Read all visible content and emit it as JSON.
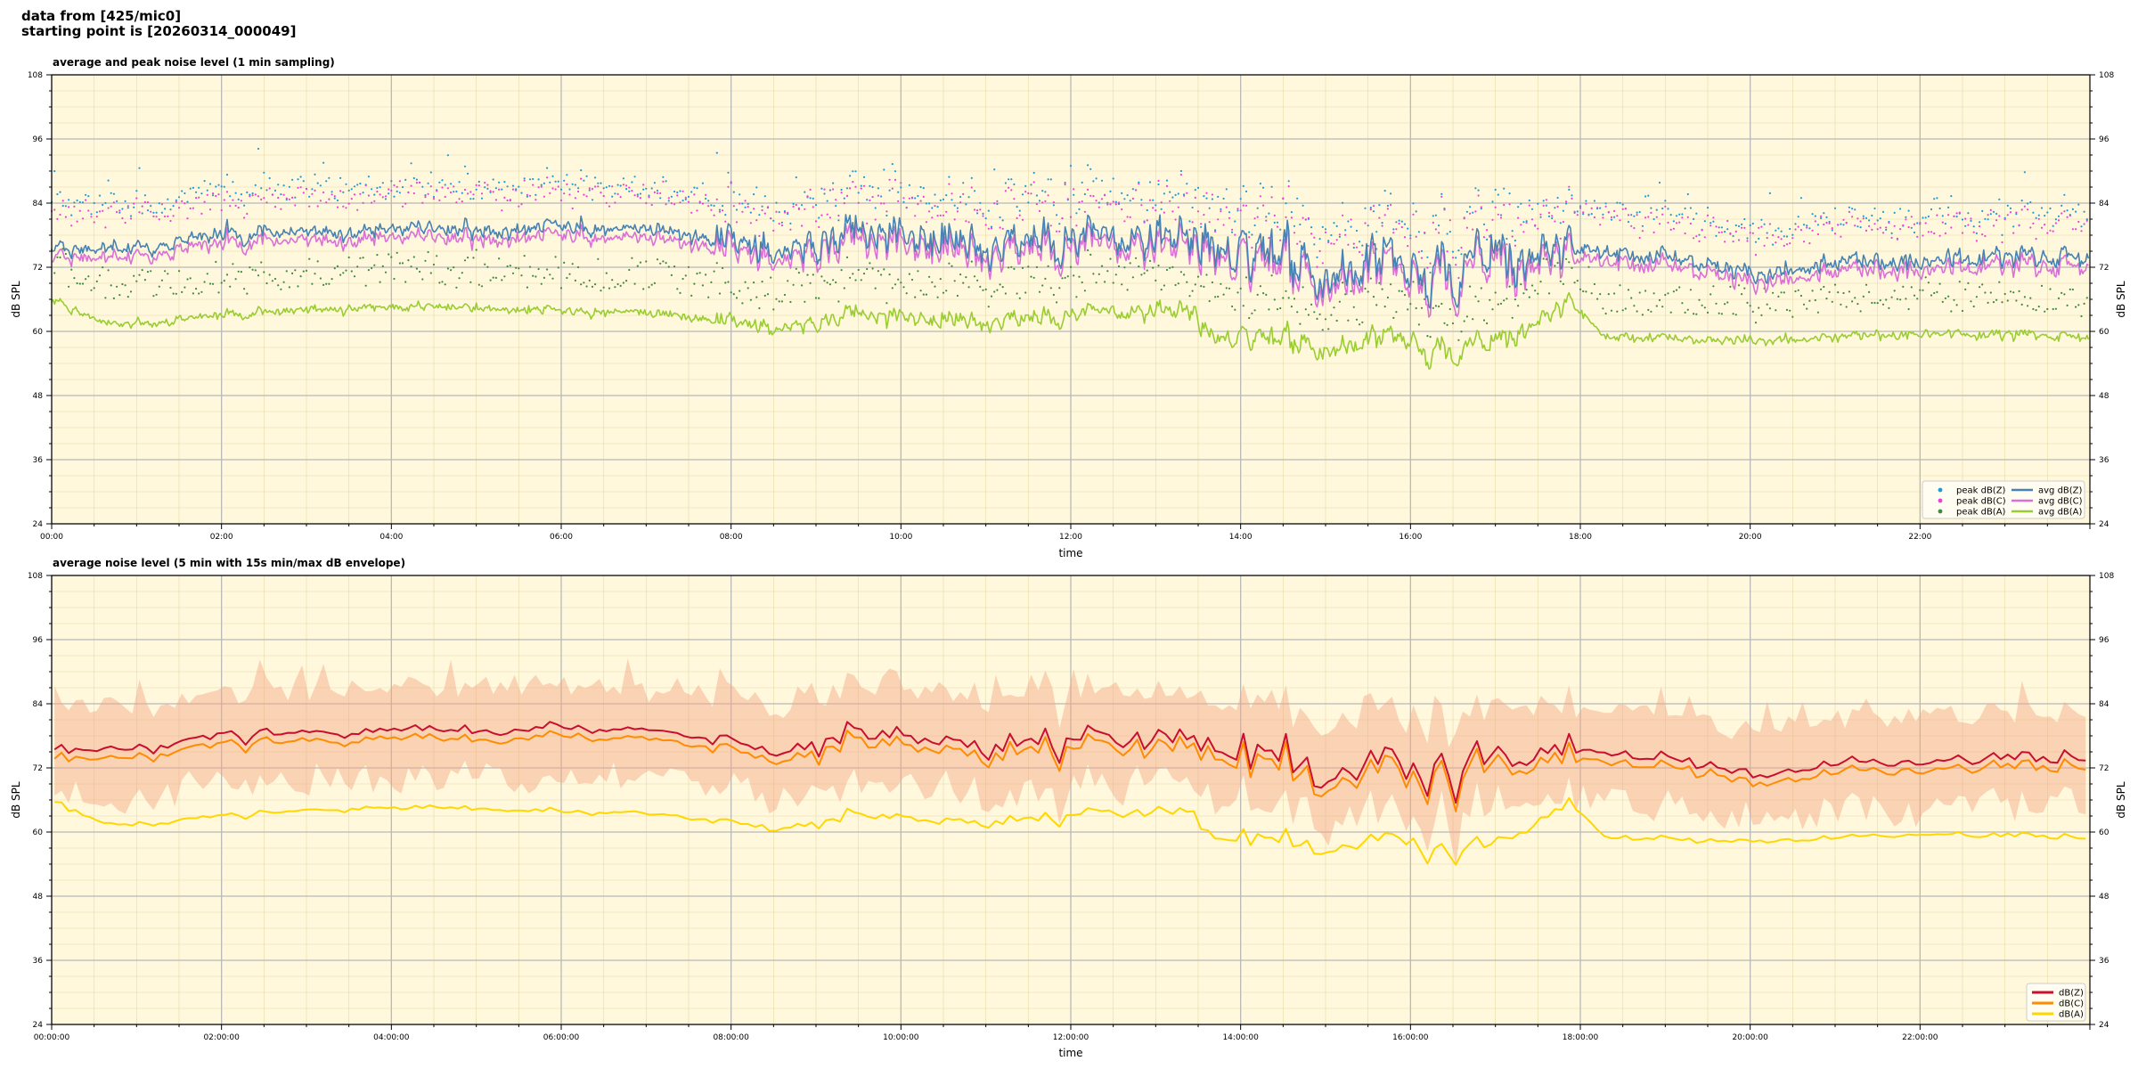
{
  "header": {
    "line1": "data from [425/mic0]",
    "line2": "starting point is [20260314_000049]"
  },
  "chart_data": [
    {
      "type": "scatter+line",
      "title": "average and peak noise level (1 min sampling)",
      "xlabel": "time",
      "ylabel": "dB SPL",
      "ylim": [
        24,
        108
      ],
      "xlim_hours": [
        0,
        24
      ],
      "y_ticks": [
        "24",
        "36",
        "48",
        "60",
        "72",
        "84",
        "96",
        "108"
      ],
      "x_ticks": [
        "00:00",
        "02:00",
        "04:00",
        "06:00",
        "08:00",
        "10:00",
        "12:00",
        "14:00",
        "16:00",
        "18:00",
        "20:00",
        "22:00"
      ],
      "grid": true,
      "legend_placement": "lower-right",
      "legend": [
        {
          "name": "peak dB(Z)",
          "kind": "dot",
          "color": "#1f9bd6"
        },
        {
          "name": "peak dB(C)",
          "kind": "dot",
          "color": "#ee3fd8"
        },
        {
          "name": "peak dB(A)",
          "kind": "dot",
          "color": "#3f8a3f"
        },
        {
          "name": "avg dB(Z)",
          "kind": "line",
          "color": "#4682b4"
        },
        {
          "name": "avg dB(C)",
          "kind": "line",
          "color": "#da70d6"
        },
        {
          "name": "avg dB(A)",
          "kind": "line",
          "color": "#9acd32"
        }
      ],
      "profile_hours": [
        0,
        0.7,
        2,
        3.5,
        5,
        6,
        7,
        7.8,
        8.5,
        9.5,
        10.5,
        11.5,
        12.5,
        13.45,
        13.6,
        14.5,
        15.2,
        16,
        16.2,
        17,
        17.9,
        18.3,
        19,
        19.5,
        20,
        21,
        22,
        23,
        24
      ],
      "avg_z_profile": [
        76,
        75,
        78,
        79,
        79,
        80,
        79,
        77,
        76,
        78,
        77,
        77,
        77,
        78,
        73,
        74,
        72,
        75,
        72,
        73,
        75,
        75,
        74,
        73,
        71,
        73,
        73,
        74,
        74
      ],
      "avg_a_profile": [
        66,
        61,
        63,
        64.5,
        64.5,
        64,
        63.5,
        62,
        61,
        63,
        62,
        62.5,
        63.5,
        64,
        58,
        58.5,
        57.5,
        60,
        56.5,
        57.5,
        65,
        59,
        59,
        58.5,
        58.5,
        59,
        59.5,
        59.5,
        59
      ]
    },
    {
      "type": "line+envelope",
      "title": "average noise level (5 min with 15s min/max dB envelope)",
      "xlabel": "time",
      "ylabel": "dB SPL",
      "ylim": [
        24,
        108
      ],
      "xlim_hours": [
        0,
        24
      ],
      "y_ticks": [
        "24",
        "36",
        "48",
        "60",
        "72",
        "84",
        "96",
        "108"
      ],
      "x_ticks": [
        "00:00:00",
        "02:00:00",
        "04:00:00",
        "06:00:00",
        "08:00:00",
        "10:00:00",
        "12:00:00",
        "14:00:00",
        "16:00:00",
        "18:00:00",
        "20:00:00",
        "22:00:00"
      ],
      "grid": true,
      "legend_placement": "lower-right",
      "legend": [
        {
          "name": "dB(Z)",
          "kind": "line",
          "color": "#c8102e"
        },
        {
          "name": "dB(C)",
          "kind": "line",
          "color": "#ff8c00"
        },
        {
          "name": "dB(A)",
          "kind": "line",
          "color": "#ffd700"
        }
      ],
      "envelope_color": "#f4a582"
    }
  ]
}
